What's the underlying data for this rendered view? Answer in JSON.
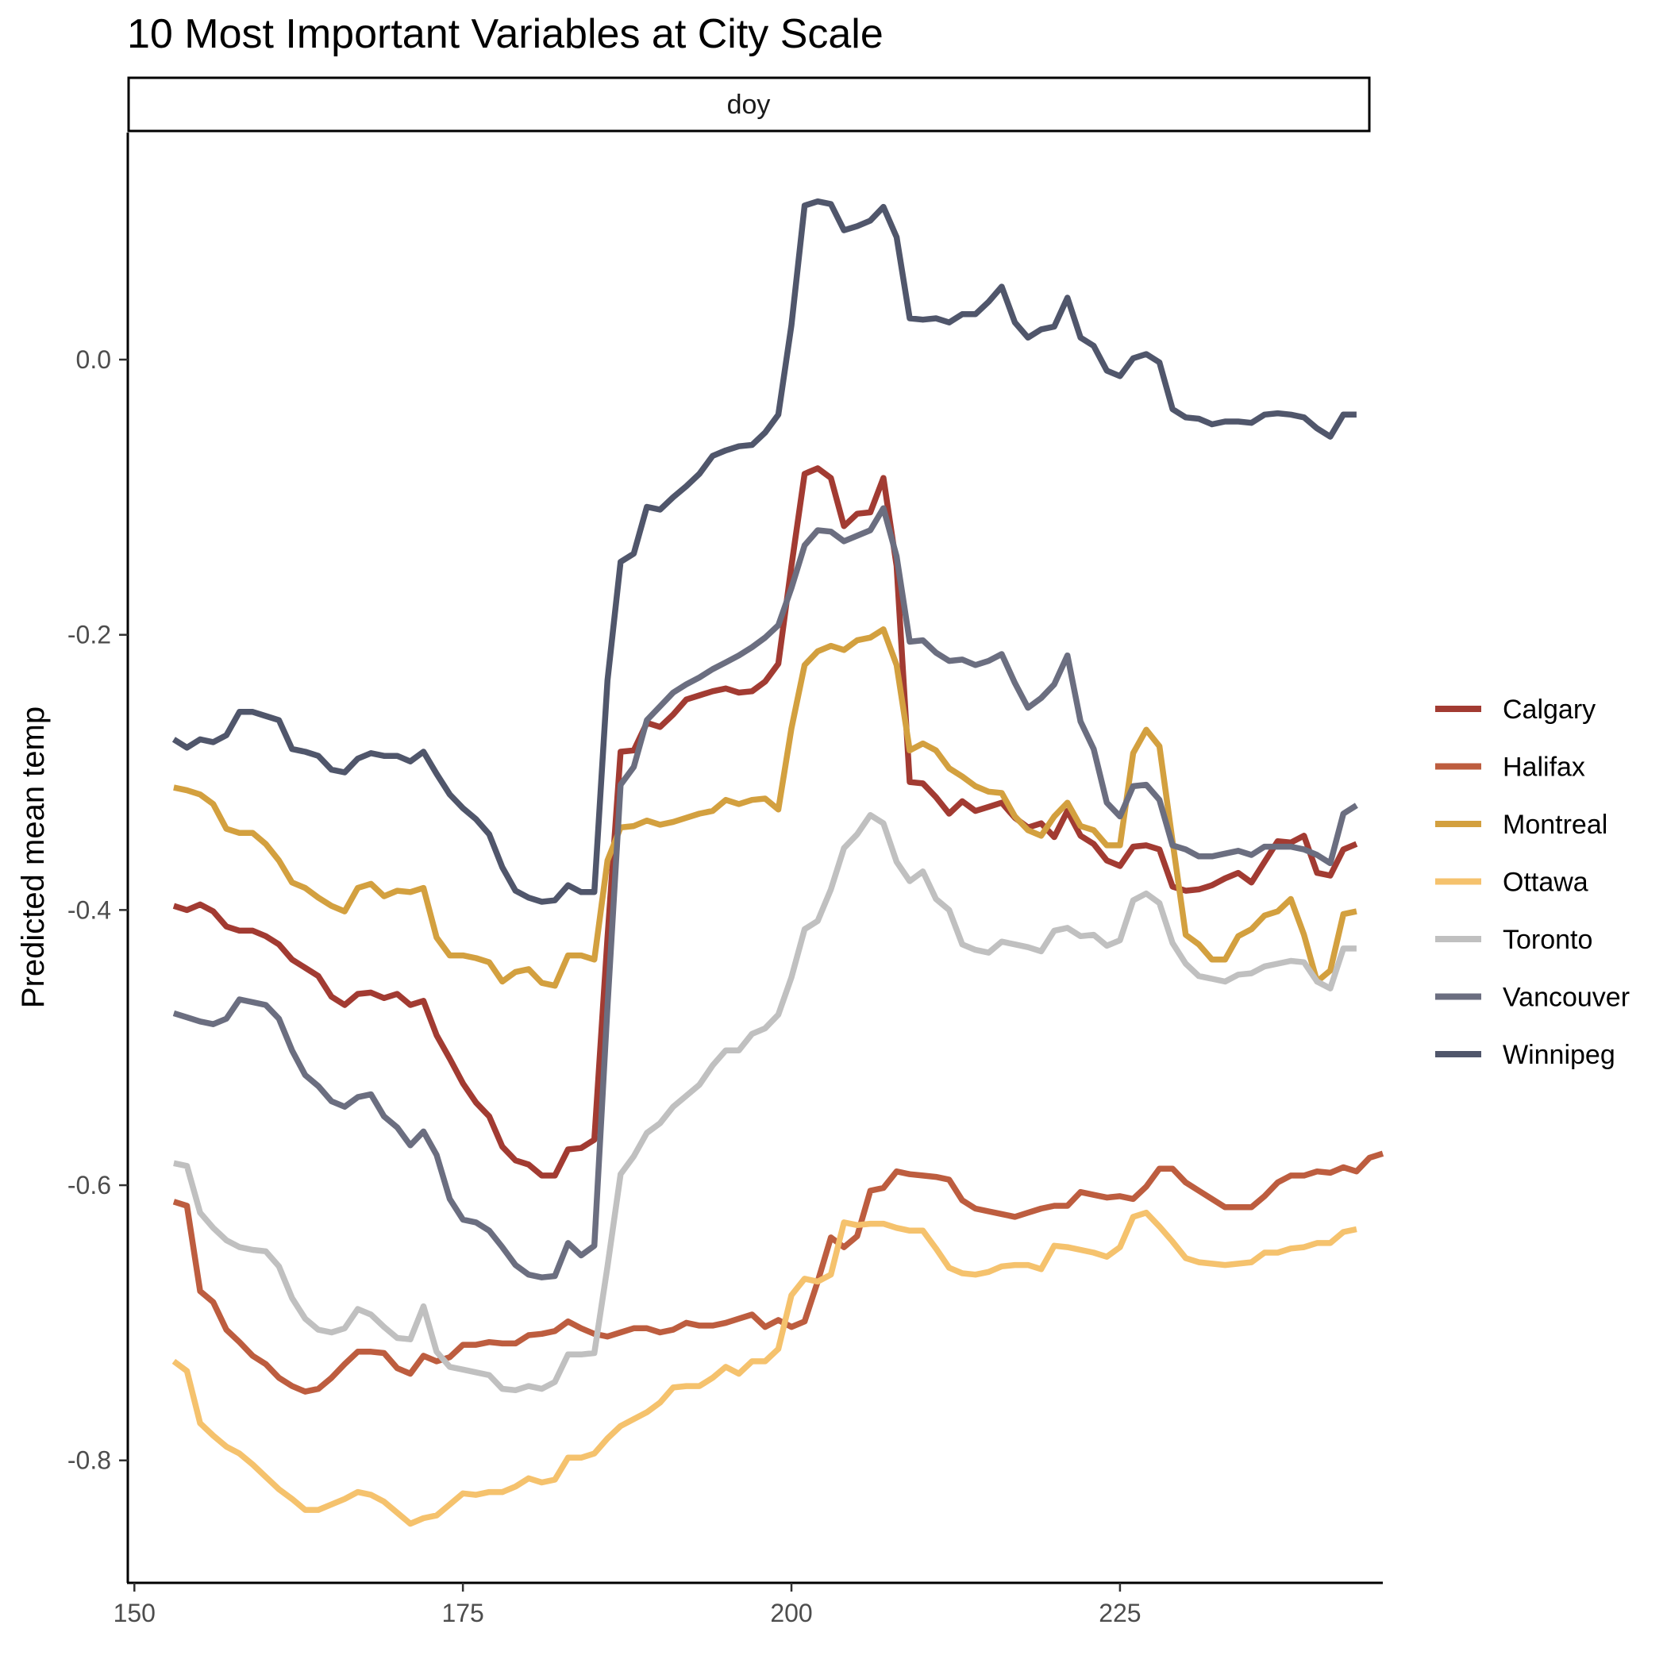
{
  "chart_data": {
    "type": "line",
    "title": "10 Most Important Variables at City Scale",
    "facet_label": "doy",
    "xlabel": "",
    "ylabel": "Predicted mean temp",
    "xlim": [
      149.5,
      245.0
    ],
    "ylim": [
      -0.889,
      0.165
    ],
    "x_ticks": [
      150,
      175,
      200,
      225
    ],
    "y_ticks": [
      0.0,
      -0.2,
      -0.4,
      -0.6,
      -0.8
    ],
    "y_tick_labels": [
      "0.0",
      "-0.2",
      "-0.4",
      "-0.6",
      "-0.8"
    ],
    "grid": false,
    "legend_position": "right",
    "x_start": 153,
    "x_step": 1,
    "series": [
      {
        "name": "Calgary",
        "color": "#a23b32",
        "values": [
          -0.397,
          -0.4,
          -0.396,
          -0.401,
          -0.412,
          -0.415,
          -0.415,
          -0.419,
          -0.425,
          -0.436,
          -0.442,
          -0.448,
          -0.463,
          -0.469,
          -0.461,
          -0.46,
          -0.464,
          -0.461,
          -0.469,
          -0.466,
          -0.491,
          -0.508,
          -0.526,
          -0.54,
          -0.55,
          -0.572,
          -0.582,
          -0.585,
          -0.593,
          -0.593,
          -0.574,
          -0.573,
          -0.567,
          -0.42,
          -0.285,
          -0.284,
          -0.264,
          -0.267,
          -0.258,
          -0.247,
          -0.244,
          -0.241,
          -0.239,
          -0.242,
          -0.241,
          -0.234,
          -0.221,
          -0.15,
          -0.083,
          -0.079,
          -0.086,
          -0.121,
          -0.112,
          -0.111,
          -0.086,
          -0.15,
          -0.307,
          -0.308,
          -0.318,
          -0.33,
          -0.321,
          -0.328,
          -0.325,
          -0.322,
          -0.333,
          -0.34,
          -0.337,
          -0.347,
          -0.328,
          -0.346,
          -0.352,
          -0.364,
          -0.368,
          -0.354,
          -0.353,
          -0.356,
          -0.383,
          -0.386,
          -0.385,
          -0.382,
          -0.377,
          -0.373,
          -0.38,
          -0.365,
          -0.35,
          -0.351,
          -0.346,
          -0.373,
          -0.375,
          -0.356,
          -0.352
        ]
      },
      {
        "name": "Halifax",
        "color": "#bd5d3f",
        "values": [
          -0.612,
          -0.615,
          -0.677,
          -0.685,
          -0.705,
          -0.714,
          -0.724,
          -0.73,
          -0.74,
          -0.746,
          -0.75,
          -0.748,
          -0.74,
          -0.73,
          -0.721,
          -0.721,
          -0.722,
          -0.733,
          -0.737,
          -0.724,
          -0.728,
          -0.725,
          -0.716,
          -0.716,
          -0.714,
          -0.715,
          -0.715,
          -0.709,
          -0.708,
          -0.706,
          -0.699,
          -0.704,
          -0.708,
          -0.71,
          -0.707,
          -0.704,
          -0.704,
          -0.707,
          -0.705,
          -0.7,
          -0.702,
          -0.702,
          -0.7,
          -0.697,
          -0.694,
          -0.703,
          -0.698,
          -0.703,
          -0.699,
          -0.67,
          -0.638,
          -0.645,
          -0.637,
          -0.604,
          -0.602,
          -0.59,
          -0.592,
          -0.593,
          -0.594,
          -0.596,
          -0.611,
          -0.617,
          -0.619,
          -0.621,
          -0.623,
          -0.62,
          -0.617,
          -0.615,
          -0.615,
          -0.605,
          -0.607,
          -0.609,
          -0.608,
          -0.61,
          -0.601,
          -0.588,
          -0.588,
          -0.598,
          -0.604,
          -0.61,
          -0.616,
          -0.616,
          -0.616,
          -0.608,
          -0.598,
          -0.593,
          -0.593,
          -0.59,
          -0.591,
          -0.587,
          -0.59,
          -0.58,
          -0.577
        ]
      },
      {
        "name": "Montreal",
        "color": "#d3a03f",
        "values": [
          -0.311,
          -0.313,
          -0.316,
          -0.323,
          -0.341,
          -0.344,
          -0.344,
          -0.352,
          -0.364,
          -0.38,
          -0.384,
          -0.391,
          -0.397,
          -0.401,
          -0.384,
          -0.381,
          -0.39,
          -0.386,
          -0.387,
          -0.384,
          -0.42,
          -0.433,
          -0.433,
          -0.435,
          -0.438,
          -0.452,
          -0.445,
          -0.443,
          -0.453,
          -0.455,
          -0.433,
          -0.433,
          -0.436,
          -0.364,
          -0.34,
          -0.339,
          -0.335,
          -0.338,
          -0.336,
          -0.333,
          -0.33,
          -0.328,
          -0.32,
          -0.323,
          -0.32,
          -0.319,
          -0.327,
          -0.268,
          -0.222,
          -0.212,
          -0.208,
          -0.211,
          -0.204,
          -0.202,
          -0.196,
          -0.222,
          -0.284,
          -0.279,
          -0.284,
          -0.297,
          -0.303,
          -0.31,
          -0.314,
          -0.315,
          -0.332,
          -0.342,
          -0.346,
          -0.332,
          -0.322,
          -0.339,
          -0.342,
          -0.353,
          -0.353,
          -0.286,
          -0.269,
          -0.281,
          -0.35,
          -0.418,
          -0.425,
          -0.436,
          -0.436,
          -0.419,
          -0.414,
          -0.404,
          -0.401,
          -0.392,
          -0.418,
          -0.452,
          -0.444,
          -0.403,
          -0.401
        ]
      },
      {
        "name": "Ottawa",
        "color": "#f5c26d",
        "values": [
          -0.728,
          -0.735,
          -0.773,
          -0.782,
          -0.79,
          -0.795,
          -0.803,
          -0.812,
          -0.821,
          -0.828,
          -0.836,
          -0.836,
          -0.832,
          -0.828,
          -0.823,
          -0.825,
          -0.83,
          -0.838,
          -0.846,
          -0.842,
          -0.84,
          -0.832,
          -0.824,
          -0.825,
          -0.823,
          -0.823,
          -0.819,
          -0.813,
          -0.816,
          -0.814,
          -0.798,
          -0.798,
          -0.795,
          -0.784,
          -0.775,
          -0.77,
          -0.765,
          -0.758,
          -0.747,
          -0.746,
          -0.746,
          -0.74,
          -0.732,
          -0.737,
          -0.728,
          -0.728,
          -0.719,
          -0.68,
          -0.668,
          -0.67,
          -0.665,
          -0.627,
          -0.629,
          -0.628,
          -0.628,
          -0.631,
          -0.633,
          -0.633,
          -0.646,
          -0.66,
          -0.664,
          -0.665,
          -0.663,
          -0.659,
          -0.658,
          -0.658,
          -0.661,
          -0.644,
          -0.645,
          -0.647,
          -0.649,
          -0.652,
          -0.645,
          -0.623,
          -0.62,
          -0.63,
          -0.641,
          -0.653,
          -0.656,
          -0.657,
          -0.658,
          -0.657,
          -0.656,
          -0.649,
          -0.649,
          -0.646,
          -0.645,
          -0.642,
          -0.642,
          -0.634,
          -0.632
        ]
      },
      {
        "name": "Toronto",
        "color": "#c0c0c0",
        "values": [
          -0.584,
          -0.586,
          -0.62,
          -0.631,
          -0.64,
          -0.645,
          -0.647,
          -0.648,
          -0.659,
          -0.682,
          -0.697,
          -0.705,
          -0.707,
          -0.704,
          -0.69,
          -0.694,
          -0.703,
          -0.711,
          -0.712,
          -0.688,
          -0.721,
          -0.732,
          -0.734,
          -0.736,
          -0.738,
          -0.748,
          -0.749,
          -0.746,
          -0.748,
          -0.743,
          -0.723,
          -0.723,
          -0.722,
          -0.659,
          -0.592,
          -0.579,
          -0.562,
          -0.555,
          -0.543,
          -0.535,
          -0.527,
          -0.513,
          -0.502,
          -0.502,
          -0.49,
          -0.486,
          -0.476,
          -0.449,
          -0.414,
          -0.408,
          -0.385,
          -0.355,
          -0.345,
          -0.331,
          -0.337,
          -0.365,
          -0.379,
          -0.372,
          -0.392,
          -0.4,
          -0.425,
          -0.429,
          -0.431,
          -0.423,
          -0.425,
          -0.427,
          -0.43,
          -0.415,
          -0.413,
          -0.419,
          -0.418,
          -0.426,
          -0.422,
          -0.393,
          -0.388,
          -0.395,
          -0.424,
          -0.439,
          -0.448,
          -0.45,
          -0.452,
          -0.447,
          -0.446,
          -0.441,
          -0.439,
          -0.437,
          -0.438,
          -0.452,
          -0.457,
          -0.428,
          -0.428
        ]
      },
      {
        "name": "Vancouver",
        "color": "#6b6e80",
        "values": [
          -0.475,
          -0.478,
          -0.481,
          -0.483,
          -0.479,
          -0.465,
          -0.467,
          -0.469,
          -0.479,
          -0.502,
          -0.52,
          -0.528,
          -0.539,
          -0.543,
          -0.536,
          -0.534,
          -0.55,
          -0.558,
          -0.571,
          -0.561,
          -0.578,
          -0.61,
          -0.625,
          -0.627,
          -0.633,
          -0.645,
          -0.658,
          -0.665,
          -0.667,
          -0.666,
          -0.642,
          -0.651,
          -0.644,
          -0.47,
          -0.309,
          -0.296,
          -0.262,
          -0.252,
          -0.242,
          -0.236,
          -0.231,
          -0.225,
          -0.22,
          -0.215,
          -0.209,
          -0.202,
          -0.193,
          -0.166,
          -0.135,
          -0.124,
          -0.125,
          -0.132,
          -0.128,
          -0.124,
          -0.108,
          -0.143,
          -0.205,
          -0.204,
          -0.213,
          -0.219,
          -0.218,
          -0.222,
          -0.219,
          -0.214,
          -0.235,
          -0.253,
          -0.246,
          -0.236,
          -0.215,
          -0.263,
          -0.283,
          -0.322,
          -0.332,
          -0.31,
          -0.309,
          -0.32,
          -0.353,
          -0.356,
          -0.361,
          -0.361,
          -0.359,
          -0.357,
          -0.36,
          -0.354,
          -0.354,
          -0.354,
          -0.356,
          -0.36,
          -0.366,
          -0.33,
          -0.324
        ]
      },
      {
        "name": "Winnipeg",
        "color": "#50566b",
        "values": [
          -0.276,
          -0.282,
          -0.276,
          -0.278,
          -0.273,
          -0.256,
          -0.256,
          -0.259,
          -0.262,
          -0.283,
          -0.285,
          -0.288,
          -0.298,
          -0.3,
          -0.29,
          -0.286,
          -0.288,
          -0.288,
          -0.292,
          -0.285,
          -0.301,
          -0.316,
          -0.326,
          -0.334,
          -0.345,
          -0.369,
          -0.386,
          -0.391,
          -0.394,
          -0.393,
          -0.382,
          -0.387,
          -0.387,
          -0.233,
          -0.147,
          -0.141,
          -0.107,
          -0.109,
          -0.1,
          -0.092,
          -0.083,
          -0.07,
          -0.066,
          -0.063,
          -0.062,
          -0.053,
          -0.04,
          0.025,
          0.112,
          0.115,
          0.113,
          0.094,
          0.097,
          0.101,
          0.111,
          0.089,
          0.03,
          0.029,
          0.03,
          0.027,
          0.033,
          0.033,
          0.042,
          0.053,
          0.027,
          0.016,
          0.022,
          0.024,
          0.045,
          0.016,
          0.01,
          -0.008,
          -0.012,
          0.001,
          0.004,
          -0.002,
          -0.036,
          -0.042,
          -0.043,
          -0.047,
          -0.045,
          -0.045,
          -0.046,
          -0.04,
          -0.039,
          -0.04,
          -0.042,
          -0.05,
          -0.056,
          -0.04,
          -0.04
        ]
      }
    ]
  }
}
